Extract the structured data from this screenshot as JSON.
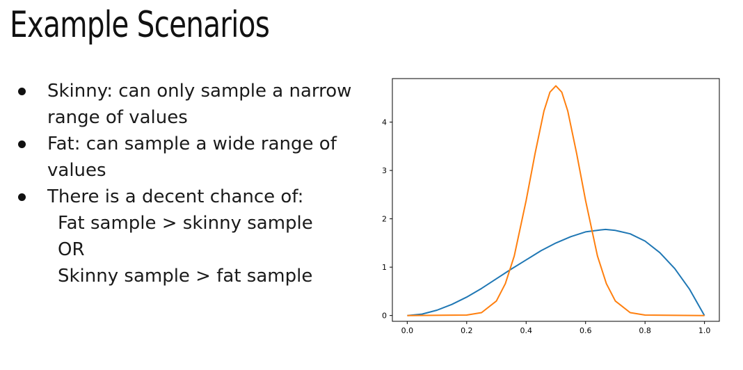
{
  "slide": {
    "title": "Example Scenarios",
    "bullets": [
      {
        "text": "Skinny: can only sample a narrow range of values"
      },
      {
        "text": "Fat: can sample a wide range of values"
      },
      {
        "text": "There is a decent chance of:"
      }
    ],
    "sublines": [
      "Fat sample > skinny sample",
      "OR",
      "Skinny sample > fat sample"
    ]
  },
  "chart_data": {
    "type": "line",
    "xlim": [
      -0.05,
      1.05
    ],
    "ylim": [
      -0.12,
      4.9
    ],
    "xticks": [
      "0.0",
      "0.2",
      "0.4",
      "0.6",
      "0.8",
      "1.0"
    ],
    "yticks": [
      "0",
      "1",
      "2",
      "3",
      "4"
    ],
    "grid": false,
    "series": [
      {
        "color": "#1f77b4",
        "x": [
          0,
          0.05,
          0.1,
          0.15,
          0.2,
          0.25,
          0.3,
          0.35,
          0.4,
          0.45,
          0.5,
          0.55,
          0.6,
          0.65,
          0.667,
          0.7,
          0.75,
          0.8,
          0.85,
          0.9,
          0.95,
          1.0
        ],
        "y": [
          0,
          0.03,
          0.11,
          0.23,
          0.38,
          0.56,
          0.76,
          0.96,
          1.15,
          1.34,
          1.5,
          1.63,
          1.73,
          1.77,
          1.78,
          1.76,
          1.69,
          1.54,
          1.3,
          0.97,
          0.54,
          0
        ]
      },
      {
        "color": "#ff7f0e",
        "x": [
          0,
          0.2,
          0.25,
          0.3,
          0.33,
          0.36,
          0.4,
          0.43,
          0.46,
          0.48,
          0.5,
          0.52,
          0.54,
          0.57,
          0.6,
          0.64,
          0.67,
          0.7,
          0.75,
          0.8,
          1.0
        ],
        "y": [
          0,
          0.01,
          0.06,
          0.3,
          0.66,
          1.23,
          2.38,
          3.35,
          4.23,
          4.62,
          4.75,
          4.62,
          4.23,
          3.35,
          2.38,
          1.23,
          0.66,
          0.3,
          0.06,
          0.01,
          0
        ]
      }
    ]
  }
}
